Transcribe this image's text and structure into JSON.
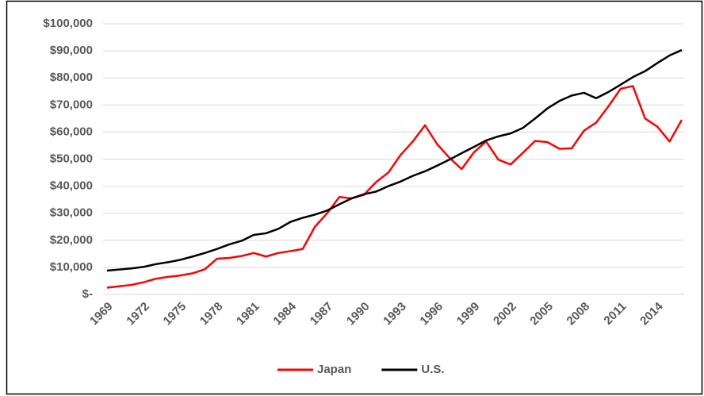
{
  "chart_data": {
    "type": "line",
    "x": [
      1969,
      1970,
      1971,
      1972,
      1973,
      1974,
      1975,
      1976,
      1977,
      1978,
      1979,
      1980,
      1981,
      1982,
      1983,
      1984,
      1985,
      1986,
      1987,
      1988,
      1989,
      1990,
      1991,
      1992,
      1993,
      1994,
      1995,
      1996,
      1997,
      1998,
      1999,
      2000,
      2001,
      2002,
      2003,
      2004,
      2005,
      2006,
      2007,
      2008,
      2009,
      2010,
      2011,
      2012,
      2013,
      2014,
      2015,
      2016
    ],
    "series": [
      {
        "name": "Japan",
        "color": "#ff0000",
        "values": [
          2500,
          3000,
          3500,
          4500,
          5800,
          6500,
          7000,
          7800,
          9300,
          13200,
          13500,
          14200,
          15300,
          14000,
          15300,
          16000,
          16800,
          25000,
          30000,
          36000,
          35500,
          36800,
          41500,
          45000,
          51500,
          56500,
          62500,
          55500,
          50500,
          46300,
          52500,
          56500,
          49800,
          48000,
          52300,
          56700,
          56300,
          53800,
          54000,
          60500,
          63500,
          69500,
          76000,
          77000,
          65000,
          62000,
          56500,
          64500
        ]
      },
      {
        "name": "U.S.",
        "color": "#000000",
        "values": [
          8800,
          9200,
          9600,
          10200,
          11200,
          11900,
          12800,
          14000,
          15300,
          16800,
          18500,
          19800,
          22000,
          22600,
          24200,
          26800,
          28300,
          29500,
          31000,
          33300,
          35500,
          37000,
          38000,
          40000,
          41700,
          43800,
          45500,
          47600,
          49800,
          52200,
          54500,
          56900,
          58400,
          59500,
          61500,
          65000,
          68700,
          71500,
          73500,
          74500,
          72500,
          74800,
          77500,
          80300,
          82500,
          85500,
          88300,
          90300
        ]
      }
    ],
    "xlim": [
      1969,
      2016
    ],
    "xticks": [
      1969,
      1972,
      1975,
      1978,
      1981,
      1984,
      1987,
      1990,
      1993,
      1996,
      1999,
      2002,
      2005,
      2008,
      2011,
      2014
    ],
    "ylim": [
      0,
      100000
    ],
    "yticks": [
      {
        "value": 0,
        "label": "$-"
      },
      {
        "value": 10000,
        "label": "$10,000"
      },
      {
        "value": 20000,
        "label": "$20,000"
      },
      {
        "value": 30000,
        "label": "$30,000"
      },
      {
        "value": 40000,
        "label": "$40,000"
      },
      {
        "value": 50000,
        "label": "$50,000"
      },
      {
        "value": 60000,
        "label": "$60,000"
      },
      {
        "value": 70000,
        "label": "$70,000"
      },
      {
        "value": 80000,
        "label": "$80,000"
      },
      {
        "value": 90000,
        "label": "$90,000"
      },
      {
        "value": 100000,
        "label": "$100,000"
      }
    ],
    "grid": true,
    "legend": "bottom"
  }
}
